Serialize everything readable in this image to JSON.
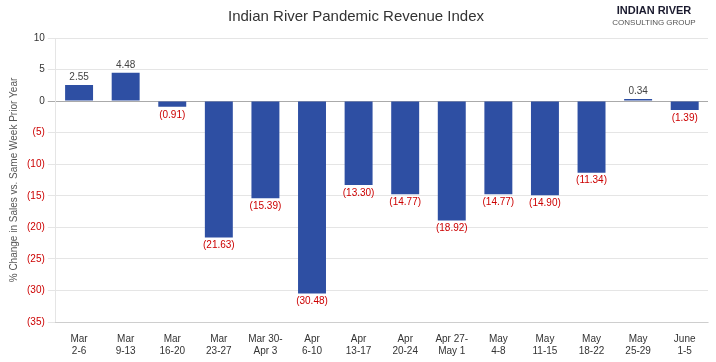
{
  "chart_data": {
    "type": "bar",
    "title": "Indian River Pandemic Revenue Index",
    "y_label": "% Change in Sales vs. Same Week Prior Year",
    "annotations": [
      "INDIAN RIVER",
      "CONSULTING GROUP"
    ],
    "categories": [
      "Mar\n2-6",
      "Mar\n9-13",
      "Mar\n16-20",
      "Mar\n23-27",
      "Mar 30-\nApr 3",
      "Apr\n6-10",
      "Apr\n13-17",
      "Apr\n20-24",
      "Apr 27-\nMay 1",
      "May\n4-8",
      "May\n11-15",
      "May\n18-22",
      "May\n25-29",
      "June\n1-5"
    ],
    "values": [
      2.55,
      4.48,
      -0.91,
      -21.63,
      -15.39,
      -30.48,
      -13.3,
      -14.77,
      -18.92,
      -14.77,
      -14.9,
      -11.34,
      0.34,
      -1.39
    ],
    "value_labels": [
      "2.55",
      "4.48",
      "(0.91)",
      "(21.63)",
      "(15.39)",
      "(30.48)",
      "(13.30)",
      "(14.77)",
      "(18.92)",
      "(14.77)",
      "(14.90)",
      "(11.34)",
      "0.34",
      "(1.39)"
    ],
    "data_labels": true,
    "color": "#2E4FA3",
    "ylim": [
      -35,
      10
    ],
    "yticks": [
      {
        "value": -35,
        "label": "(35)"
      },
      {
        "value": -30,
        "label": "(30)"
      },
      {
        "value": -25,
        "label": "(25)"
      },
      {
        "value": -20,
        "label": "(20)"
      },
      {
        "value": -15,
        "label": "(15)"
      },
      {
        "value": -10,
        "label": "(10)"
      },
      {
        "value": -5,
        "label": "(5)"
      },
      0,
      5,
      10
    ],
    "grid": true
  }
}
